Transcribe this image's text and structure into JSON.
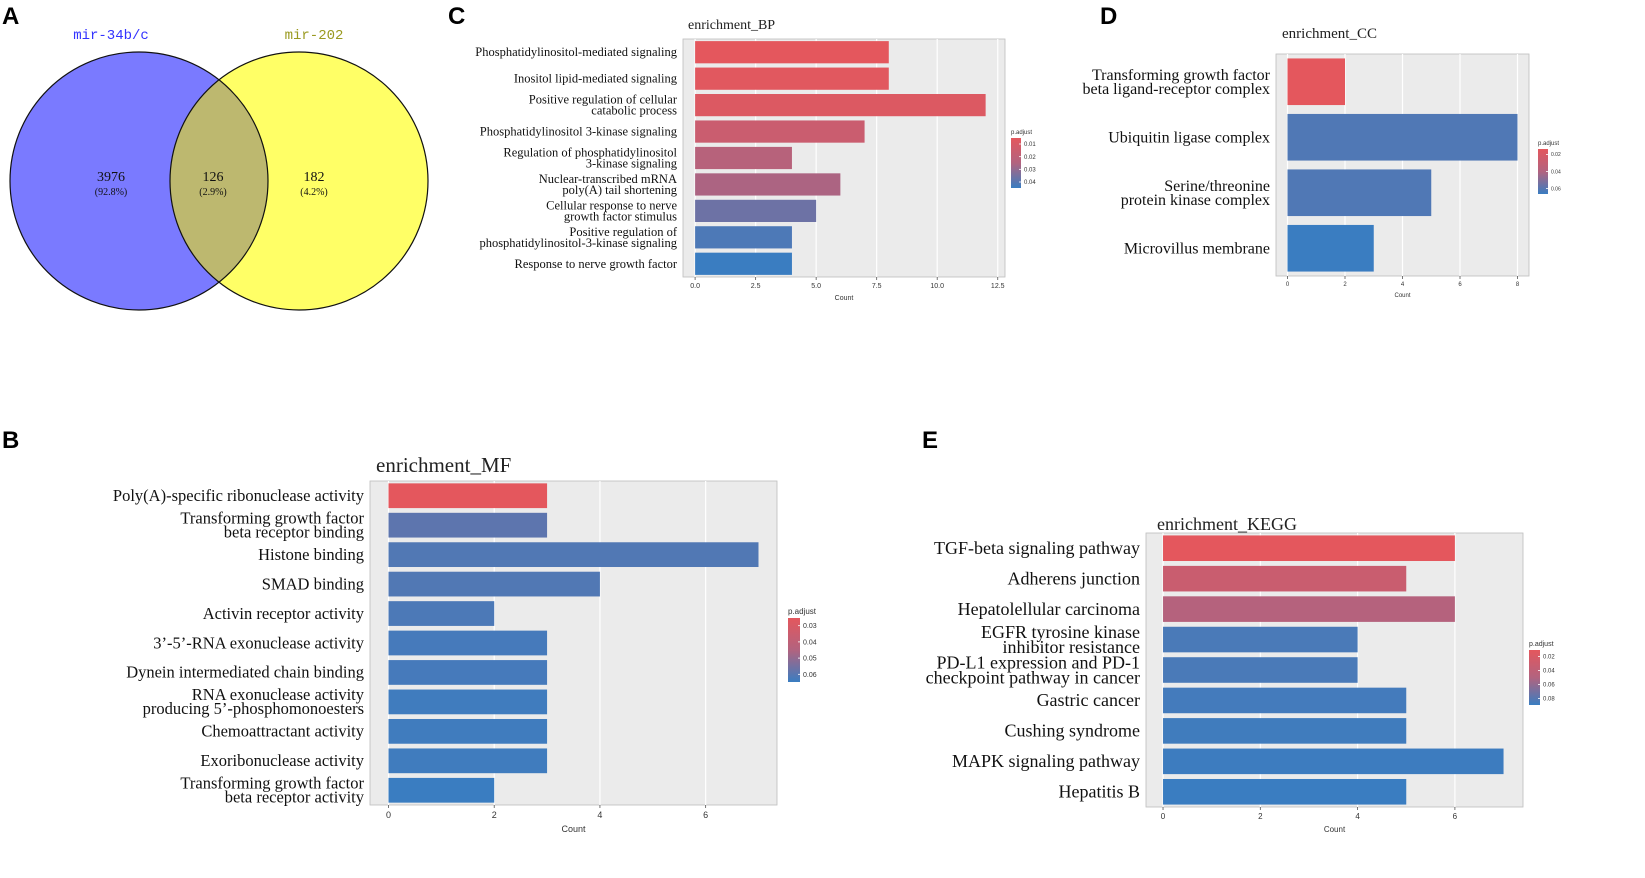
{
  "panel_labels": {
    "A": "A",
    "B": "B",
    "C": "C",
    "D": "D",
    "E": "E"
  },
  "colors": {
    "set_a": "#7a7aff",
    "set_b": "#ffff66",
    "overlap": "#bdb86f",
    "set_a_label": "#3333ff",
    "set_b_label": "#9a9a20",
    "grad_high": "#e4575d",
    "grad_mid": "#b2637f",
    "grad_low": "#3a7dc1",
    "panel_bg": "#ebebeb"
  },
  "venn": {
    "set_a": {
      "name": "mir-34b/c",
      "count": "3976",
      "pct": "(92.8%)"
    },
    "set_b": {
      "name": "mir-202",
      "count": "182",
      "pct": "(4.2%)"
    },
    "overlap": {
      "count": "126",
      "pct": "(2.9%)"
    }
  },
  "chart_data": [
    {
      "id": "BP",
      "type": "bar",
      "orientation": "horizontal",
      "title": "enrichment_BP",
      "xlabel": "Count",
      "legend_title": "p.adjust",
      "xlim": [
        -0.5,
        12.8
      ],
      "xticks": [
        0,
        2.5,
        5,
        7.5,
        10,
        12.5
      ],
      "xtick_labels": [
        "0.0",
        "2.5",
        "5.0",
        "7.5",
        "10.0",
        "12.5"
      ],
      "legend_ticks": [
        "0.01",
        "0.02",
        "0.03",
        "0.04"
      ],
      "categories": [
        [
          "Phosphatidylinositol-mediated signaling"
        ],
        [
          "Inositol lipid-mediated signaling"
        ],
        [
          "Positive regulation of cellular",
          "catabolic process"
        ],
        [
          "Phosphatidylinositol 3-kinase signaling"
        ],
        [
          "Regulation of phosphatidylinositol",
          "3-kinase signaling"
        ],
        [
          "Nuclear-transcribed mRNA",
          "poly(A) tail shortening"
        ],
        [
          "Cellular response to nerve",
          "growth factor stimulus"
        ],
        [
          "Positive regulation of",
          "phosphatidylinositol-3-kinase signaling"
        ],
        [
          "Response to nerve growth factor"
        ]
      ],
      "values": [
        8,
        8,
        12,
        7,
        4,
        6,
        5,
        4,
        4
      ],
      "p_adjust": [
        0.005,
        0.006,
        0.008,
        0.015,
        0.022,
        0.025,
        0.035,
        0.04,
        0.043
      ]
    },
    {
      "id": "CC",
      "type": "bar",
      "orientation": "horizontal",
      "title": "enrichment_CC",
      "xlabel": "Count",
      "legend_title": "p.adjust",
      "xlim": [
        -0.4,
        8.4
      ],
      "xticks": [
        0,
        2,
        4,
        6,
        8
      ],
      "xtick_labels": [
        "0",
        "2",
        "4",
        "6",
        "8"
      ],
      "legend_ticks": [
        "0.02",
        "0.04",
        "0.06"
      ],
      "categories": [
        [
          "Transforming growth factor",
          "beta ligand-receptor complex"
        ],
        [
          "Ubiquitin ligase complex"
        ],
        [
          "Serine/threonine",
          "protein kinase complex"
        ],
        [
          "Microvillus membrane"
        ]
      ],
      "values": [
        2,
        8,
        5,
        3
      ],
      "p_adjust": [
        0.01,
        0.06,
        0.06,
        0.065
      ]
    },
    {
      "id": "MF",
      "type": "bar",
      "orientation": "horizontal",
      "title": "enrichment_MF",
      "xlabel": "Count",
      "legend_title": "p.adjust",
      "xlim": [
        -0.35,
        7.35
      ],
      "xticks": [
        0,
        2,
        4,
        6
      ],
      "xtick_labels": [
        "0",
        "2",
        "4",
        "6"
      ],
      "legend_ticks": [
        "0.03",
        "0.04",
        "0.05",
        "0.06"
      ],
      "categories": [
        [
          "Poly(A)-specific ribonuclease activity"
        ],
        [
          "Transforming growth factor",
          "beta receptor binding"
        ],
        [
          "Histone binding"
        ],
        [
          "SMAD binding"
        ],
        [
          "Activin receptor activity"
        ],
        [
          "3’-5’-RNA exonuclease activity"
        ],
        [
          "Dynein intermediated chain binding"
        ],
        [
          "RNA exonuclease activity",
          "producing 5’-phosphomonoesters"
        ],
        [
          "Chemoattractant activity"
        ],
        [
          "Exoribonuclease activity"
        ],
        [
          "Transforming growth factor",
          "beta receptor activity"
        ]
      ],
      "values": [
        3,
        3,
        7,
        4,
        2,
        3,
        3,
        3,
        3,
        3,
        2
      ],
      "p_adjust": [
        0.025,
        0.06,
        0.062,
        0.062,
        0.063,
        0.064,
        0.064,
        0.065,
        0.065,
        0.065,
        0.066
      ]
    },
    {
      "id": "KEGG",
      "type": "bar",
      "orientation": "horizontal",
      "title": "enrichment_KEGG",
      "xlabel": "Count",
      "legend_title": "p.adjust",
      "xlim": [
        -0.35,
        7.4
      ],
      "xticks": [
        0,
        2,
        4,
        6
      ],
      "xtick_labels": [
        "0",
        "2",
        "4",
        "6"
      ],
      "legend_ticks": [
        "0.02",
        "0.04",
        "0.06",
        "0.08"
      ],
      "categories": [
        [
          "TGF-beta signaling pathway"
        ],
        [
          "Adherens junction"
        ],
        [
          "Hepatolellular carcinoma"
        ],
        [
          "EGFR tyrosine kinase",
          "inhibitor resistance"
        ],
        [
          "PD-L1 expression and PD-1",
          "checkpoint pathway in cancer"
        ],
        [
          "Gastric cancer"
        ],
        [
          "Cushing syndrome"
        ],
        [
          "MAPK signaling pathway"
        ],
        [
          "Hepatitis B"
        ]
      ],
      "values": [
        6,
        5,
        6,
        4,
        4,
        5,
        5,
        7,
        5
      ],
      "p_adjust": [
        0.01,
        0.03,
        0.045,
        0.08,
        0.08,
        0.082,
        0.083,
        0.084,
        0.085
      ]
    }
  ]
}
